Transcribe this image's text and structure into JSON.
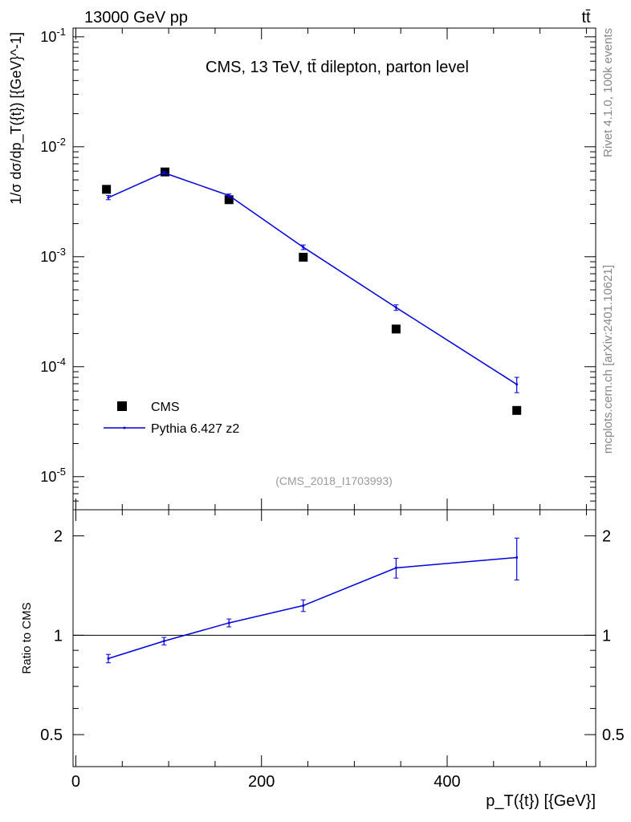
{
  "header": {
    "energy_label": "13000 GeV pp",
    "process_label": "tt̄"
  },
  "side_labels": {
    "rivet": "Rivet 4.1.0,  100k events",
    "mcplots": "mcplots.cern.ch [arXiv:2401.10621]"
  },
  "chart_data": [
    {
      "type": "scatter",
      "title": "CMS, 13 TeV, tt̄ dilepton, parton level",
      "analysis_id": "(CMS_2018_I1703993)",
      "ylabel": "#frac{1}{#sigma}#frac{d#sigma}{dp_{T}({t})}[{GeV}^{-1}]",
      "ylabel_display": "1/σ dσ/dp_T({t}) [{GeV}^-1]",
      "yscale": "log",
      "ylim": [
        5e-06,
        0.12
      ],
      "xlim": [
        -3,
        560
      ],
      "y_tick_labels": [
        "10^-5",
        "10^-4",
        "10^-3",
        "10^-2",
        "10^-1"
      ],
      "legend_position": "bottom-left",
      "series": [
        {
          "name": "CMS",
          "marker": "square",
          "color": "#000000",
          "x": [
            33,
            96,
            165,
            245,
            345,
            475
          ],
          "y": [
            0.0041,
            0.0059,
            0.0033,
            0.00099,
            0.00022,
            4e-05
          ]
        },
        {
          "name": "Pythia 6.427 z2",
          "marker": "line",
          "color": "#0000dd",
          "x": [
            35,
            95,
            165,
            245,
            345,
            475
          ],
          "y": [
            0.00345,
            0.0058,
            0.0036,
            0.00122,
            0.000345,
            6.9e-05
          ],
          "err": [
            0.00015,
            0.00015,
            0.00012,
            6e-05,
            2e-05,
            1.1e-05
          ]
        }
      ]
    },
    {
      "type": "line",
      "ylabel": "Ratio to CMS",
      "yscale": "log",
      "ylim": [
        0.4,
        2.4
      ],
      "xlim": [
        -3,
        560
      ],
      "xlabel": "p_T({t}) [{GeV}]",
      "x_tick_labels": [
        "0",
        "200",
        "400"
      ],
      "y_tick_labels": [
        "0.5",
        "1",
        "2"
      ],
      "reference": 1,
      "series": [
        {
          "name": "Pythia 6.427 z2",
          "color": "#0000dd",
          "x": [
            35,
            95,
            165,
            245,
            345,
            475
          ],
          "y": [
            0.85,
            0.96,
            1.09,
            1.23,
            1.6,
            1.72
          ],
          "err": [
            0.025,
            0.025,
            0.03,
            0.05,
            0.11,
            0.25
          ]
        }
      ]
    }
  ]
}
